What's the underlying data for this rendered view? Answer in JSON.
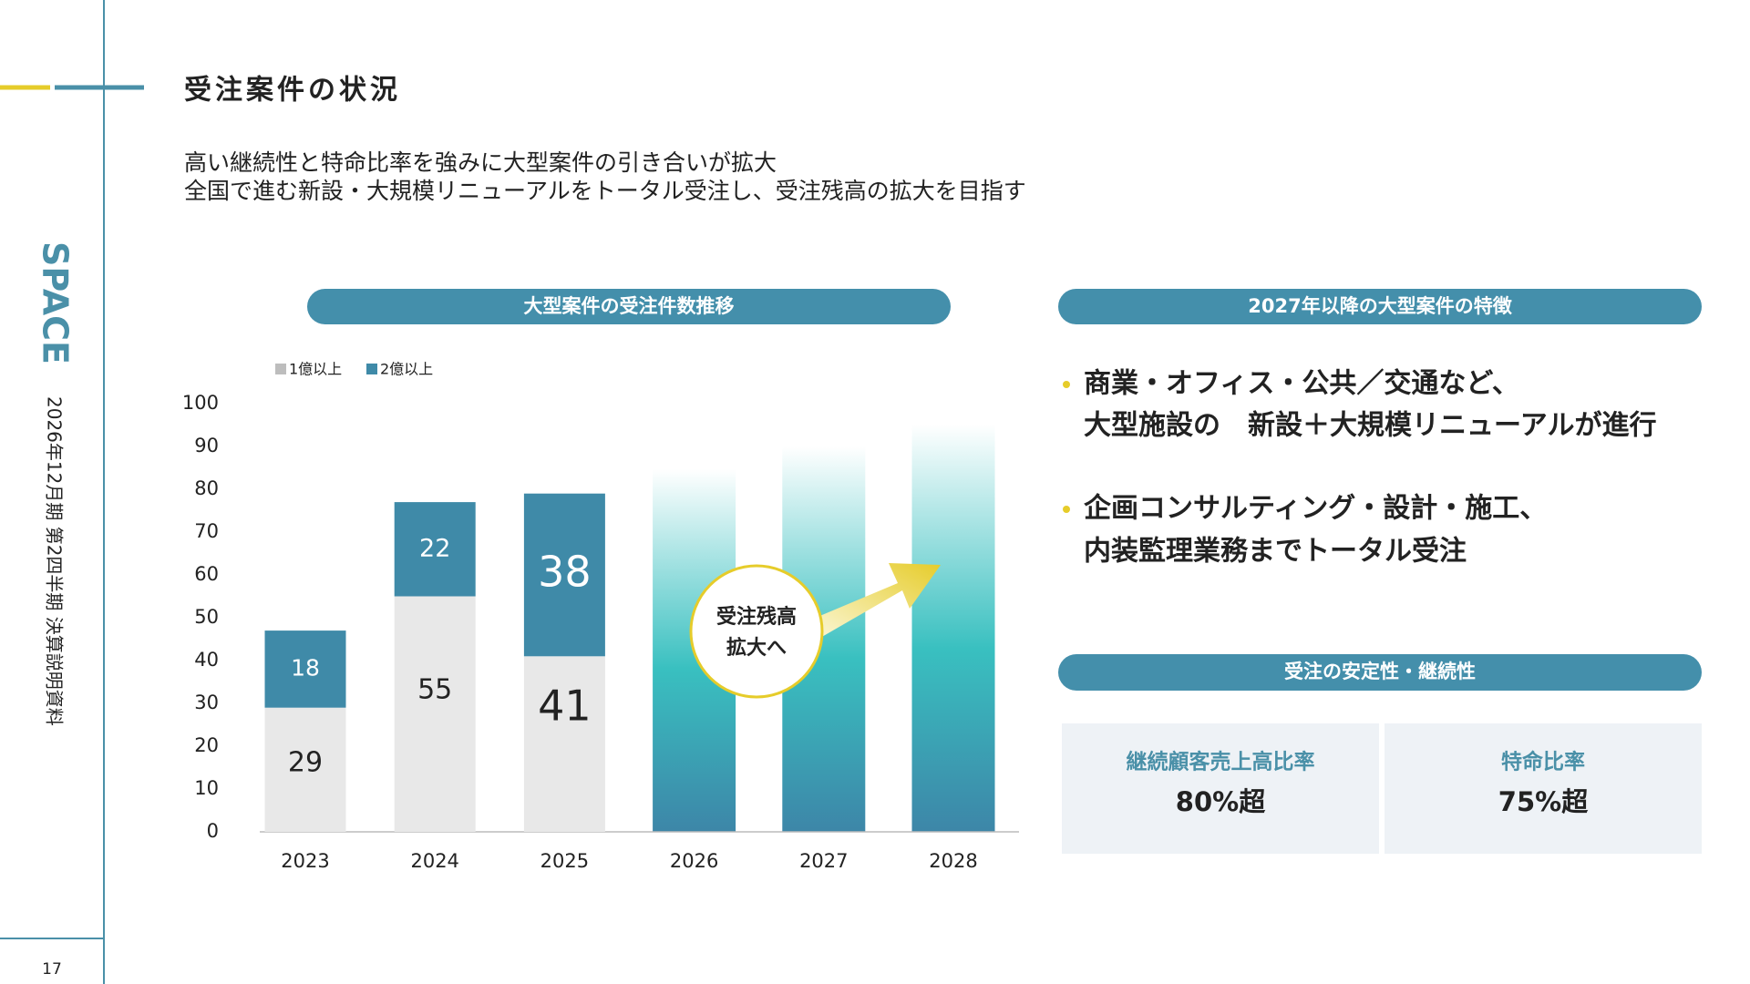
{
  "sidebar": {
    "logo": "SPACE",
    "document": "2026年12月期 第2四半期 決算説明資料",
    "page": "17"
  },
  "header": {
    "title": "受注案件の状況",
    "subtitle": [
      "高い継続性と特命比率を強みに大型案件の引き合いが拡大",
      "全国で進む新設・大規模リニューアルをトータル受注し、受注残高の拡大を目指す"
    ]
  },
  "chart_data": {
    "type": "bar",
    "stacked": true,
    "title": "大型案件の受注件数推移",
    "categories": [
      "2023",
      "2024",
      "2025",
      "2026",
      "2027",
      "2028"
    ],
    "series": [
      {
        "name": "1億以上",
        "color": "#e8e8e8",
        "legend_color": "#bdbdbd",
        "values": [
          29,
          55,
          41,
          null,
          null,
          null
        ]
      },
      {
        "name": "2億以上",
        "color": "#3f8aa8",
        "values": [
          18,
          22,
          38,
          null,
          null,
          null
        ]
      }
    ],
    "ylim": [
      0,
      100
    ],
    "yticks": [
      0,
      10,
      20,
      30,
      40,
      50,
      60,
      70,
      80,
      90,
      100
    ],
    "annotation": [
      "受注残高",
      "拡大へ"
    ]
  },
  "features": {
    "title": "2027年以降の大型案件の特徴",
    "bullets": [
      [
        "商業・オフィス・公共／交通など、",
        "大型施設の　新設＋大規模リニューアルが進行"
      ],
      [
        "企画コンサルティング・設計・施工、",
        "内装監理業務までトータル受注"
      ]
    ]
  },
  "stability": {
    "title": "受注の安定性・継続性",
    "stats": [
      {
        "label": "継続顧客売上高比率",
        "value": "80%超"
      },
      {
        "label": "特命比率",
        "value": "75%超"
      }
    ]
  }
}
